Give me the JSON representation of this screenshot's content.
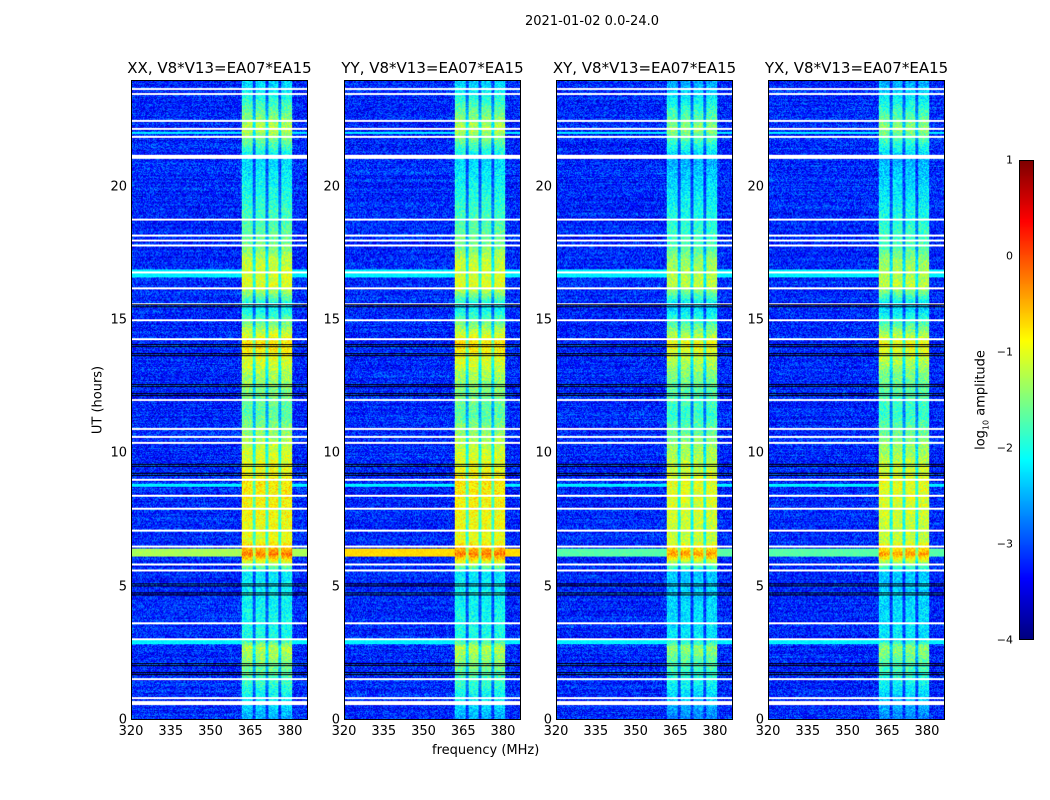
{
  "figure_title": "2021-01-02 0.0-24.0",
  "chart_data": {
    "type": "heatmap",
    "xlabel": "frequency (MHz)",
    "ylabel": "UT (hours)",
    "xlim": [
      320,
      386.8
    ],
    "ylim": [
      0,
      24
    ],
    "xticks": [
      320,
      335,
      350,
      365,
      380
    ],
    "yticks": [
      0,
      5,
      10,
      15,
      20
    ],
    "panels": [
      {
        "title": "XX, V8*V13=EA07*EA15",
        "broadband_row_level": -1.3
      },
      {
        "title": "YY, V8*V13=EA07*EA15",
        "broadband_row_level": -0.7
      },
      {
        "title": "XY, V8*V13=EA07*EA15",
        "broadband_row_level": -1.7
      },
      {
        "title": "YX, V8*V13=EA07*EA15",
        "broadband_row_level": -1.7
      }
    ],
    "background_level": -3.2,
    "rfi_subbands_mhz": [
      [
        362,
        366
      ],
      [
        367,
        371
      ],
      [
        372,
        376
      ],
      [
        377,
        381
      ]
    ],
    "rfi_levels_by_hour": [
      [
        0.5,
        -2.3
      ],
      [
        2.7,
        -1.2
      ],
      [
        3.0,
        -2.0
      ],
      [
        5.5,
        -2.2
      ],
      [
        6.2,
        -0.2
      ],
      [
        6.7,
        -1.0
      ],
      [
        8.9,
        -0.8
      ],
      [
        10.3,
        -1.2
      ],
      [
        11.5,
        -1.7
      ],
      [
        13.0,
        -1.3
      ],
      [
        14.1,
        -0.7
      ],
      [
        15.5,
        -2.2
      ],
      [
        16.3,
        -1.0
      ],
      [
        17.3,
        -1.2
      ],
      [
        17.7,
        -1.5
      ],
      [
        21.0,
        -2.3
      ],
      [
        22.2,
        -1.2
      ],
      [
        24,
        -2.4
      ]
    ],
    "flagged_hours_white": [
      0.55,
      0.65,
      0.8,
      1.5,
      3.0,
      3.6,
      5.6,
      5.8,
      6.5,
      7.1,
      7.9,
      8.4,
      9.0,
      10.4,
      10.6,
      10.9,
      12.0,
      14.3,
      15.0,
      15.6,
      16.2,
      16.8,
      17.8,
      18.0,
      18.2,
      18.8,
      21.1,
      21.2,
      21.9,
      22.2,
      22.5,
      23.5,
      23.7
    ],
    "flagged_ranges_black": [
      [
        1.6,
        2.7
      ],
      [
        4.6,
        5.6
      ],
      [
        8.7,
        10.2
      ],
      [
        11.4,
        13.3
      ],
      [
        13.5,
        14.6
      ],
      [
        15.3,
        16.5
      ],
      [
        17.1,
        17.6
      ],
      [
        22.3,
        22.6
      ]
    ],
    "broadband_rows_hours": [
      [
        2.8,
        2.95
      ],
      [
        6.1,
        6.4
      ],
      [
        8.75,
        8.85
      ],
      [
        16.6,
        16.9
      ],
      [
        22.0,
        22.1
      ]
    ],
    "colorbar": {
      "label": "log10 amplitude",
      "label_base": "log",
      "label_sub": "10",
      "label_rest": " amplitude",
      "ticks": [
        "1",
        "0",
        "−1",
        "−2",
        "−3",
        "−4"
      ],
      "range": [
        -4,
        1
      ]
    }
  }
}
